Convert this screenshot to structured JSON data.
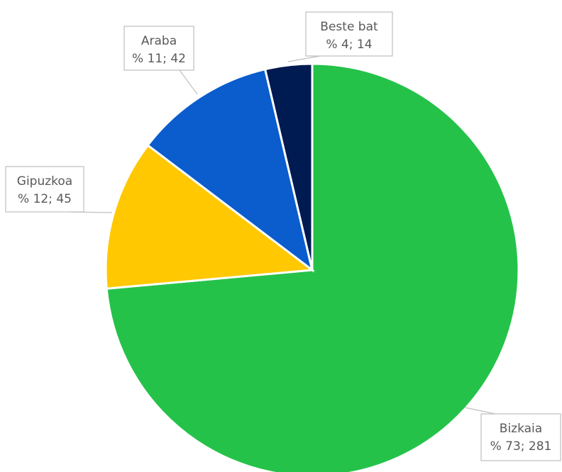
{
  "chart_data": {
    "type": "pie",
    "title": "",
    "start_angle_deg": 0,
    "direction": "clockwise",
    "slices": [
      {
        "label": "Bizkaia",
        "percent": 73,
        "value": 281,
        "display": "% 73; 281",
        "color": "#25c24a"
      },
      {
        "label": "Gipuzkoa",
        "percent": 12,
        "value": 45,
        "display": "% 12; 45",
        "color": "#ffc800"
      },
      {
        "label": "Araba",
        "percent": 11,
        "value": 42,
        "display": "% 11; 42",
        "color": "#0b5ccd"
      },
      {
        "label": "Beste bat",
        "percent": 4,
        "value": 14,
        "display": "% 4; 14",
        "color": "#001a52"
      }
    ]
  }
}
